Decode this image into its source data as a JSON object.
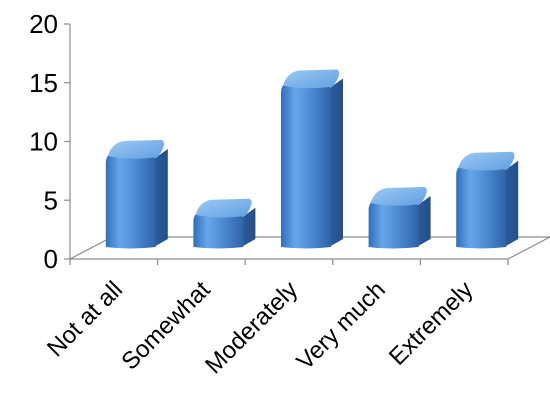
{
  "chart_data": {
    "type": "bar",
    "style": "3d-rounded-column",
    "categories": [
      "Not at all",
      "Somewhat",
      "Moderately",
      "Very much",
      "Extremely"
    ],
    "values": [
      8,
      3,
      14,
      4,
      7
    ],
    "title": "",
    "xlabel": "",
    "ylabel": "",
    "ylim": [
      0,
      20
    ],
    "yticks": [
      0,
      5,
      10,
      15,
      20
    ],
    "grid": false,
    "legend": "none",
    "colors": {
      "bar": "#4f8fd6",
      "bar_dark": "#2f63a8",
      "bar_light": "#8ec0f0",
      "axis": "#8c8c8c",
      "floor": "#ffffff"
    }
  }
}
